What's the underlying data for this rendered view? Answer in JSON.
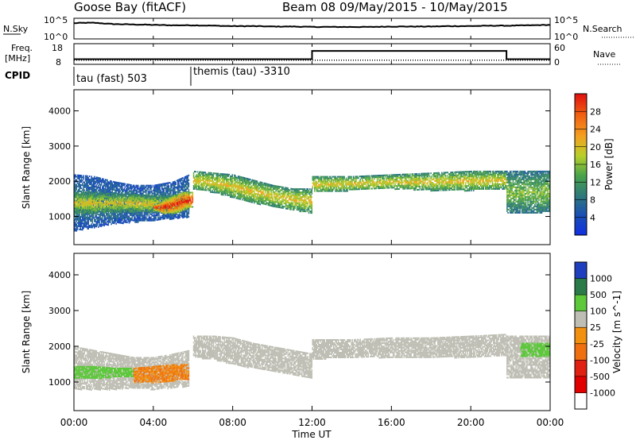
{
  "header": {
    "station": "Goose Bay (fitACF)",
    "beam_date": "Beam 08 09/May/2015 - 10/May/2015"
  },
  "chart_data": [
    {
      "type": "line",
      "panel": "noise",
      "left_label": "N.Sky",
      "right_label": "N.Search",
      "y_ticks": [
        "10^5",
        "10^0"
      ],
      "right_ticks": [
        "10^5",
        "10^0"
      ],
      "series": [
        {
          "name": "N.Sky",
          "x": [
            0,
            0.5,
            1,
            2,
            3,
            4,
            5,
            6,
            7,
            8,
            9,
            10,
            11,
            12,
            13,
            14,
            15,
            16,
            17,
            18,
            19,
            20,
            21,
            22,
            23,
            24
          ],
          "values": [
            3.8,
            3.9,
            3.9,
            3.6,
            3.5,
            3.4,
            3.3,
            3.3,
            3.2,
            3.1,
            3.1,
            3.0,
            3.0,
            2.9,
            2.9,
            2.9,
            2.9,
            3.0,
            3.0,
            3.0,
            3.1,
            3.1,
            3.2,
            3.2,
            3.3,
            3.4
          ]
        }
      ],
      "ylim": [
        0,
        5
      ],
      "xlim": [
        0,
        24
      ]
    },
    {
      "type": "line",
      "panel": "frequency",
      "left_label_1": "Freq.",
      "left_label_2": "[MHz]",
      "right_label": "Nave",
      "y_ticks": [
        "18",
        "8"
      ],
      "right_ticks": [
        "60",
        "0"
      ],
      "series": [
        {
          "name": "Freq.",
          "x": [
            0,
            12,
            12,
            21.8,
            21.8,
            24
          ],
          "values": [
            10.5,
            10.5,
            14.5,
            14.5,
            10.5,
            10.5
          ]
        },
        {
          "name": "Nave",
          "x": [
            0,
            24
          ],
          "values": [
            10,
            10
          ]
        }
      ],
      "ylim": [
        8,
        18
      ],
      "xlim": [
        0,
        24
      ]
    },
    {
      "type": "table",
      "panel": "cpid",
      "label": "CPID",
      "modes": [
        {
          "start": 0,
          "end": 6,
          "name": "tau (fast) 503"
        },
        {
          "start": 6,
          "end": 24,
          "name": "themis (tau) -3310"
        }
      ]
    },
    {
      "type": "heatmap",
      "panel": "power",
      "ylabel": "Slant Range [km]",
      "colorbar_label": "Power [dB]",
      "colorbar_ticks": [
        "28",
        "24",
        "20",
        "16",
        "12",
        "8",
        "4"
      ],
      "y_ticks": [
        1000,
        2000,
        3000,
        4000
      ],
      "ylim": [
        200,
        4600
      ],
      "xlim": [
        0,
        24
      ],
      "bands": [
        {
          "x": [
            0,
            1,
            2,
            3,
            4,
            5,
            5.8
          ],
          "y_low": [
            600,
            700,
            800,
            850,
            900,
            950,
            1000
          ],
          "y_high": [
            2200,
            2150,
            2000,
            1900,
            1900,
            2000,
            2200
          ],
          "power": 8
        },
        {
          "x": [
            0,
            1,
            2,
            3,
            4,
            5,
            5.8
          ],
          "y_low": [
            1100,
            1100,
            1150,
            1150,
            1150,
            1150,
            1200
          ],
          "y_high": [
            1700,
            1700,
            1650,
            1650,
            1600,
            1600,
            1700
          ],
          "power": 18
        },
        {
          "x": [
            4,
            4.5,
            5,
            5.5,
            6
          ],
          "y_low": [
            1200,
            1100,
            1100,
            1200,
            1300
          ],
          "y_high": [
            1350,
            1450,
            1600,
            1700,
            1700
          ],
          "power": 28
        },
        {
          "x": [
            6,
            7,
            8,
            9,
            10,
            11,
            12
          ],
          "y_low": [
            1800,
            1700,
            1550,
            1400,
            1300,
            1200,
            1100
          ],
          "y_high": [
            2300,
            2250,
            2200,
            2050,
            1900,
            1800,
            1800
          ],
          "power": 18
        },
        {
          "x": [
            12,
            14,
            16,
            18,
            20,
            21.8
          ],
          "y_low": [
            1700,
            1750,
            1800,
            1750,
            1750,
            1800
          ],
          "y_high": [
            2150,
            2150,
            2200,
            2250,
            2300,
            2300
          ],
          "power": 18
        },
        {
          "x": [
            21.8,
            22.5,
            23.2,
            24
          ],
          "y_low": [
            1100,
            1100,
            1100,
            1150
          ],
          "y_high": [
            2300,
            2300,
            2300,
            2300
          ],
          "power": 14
        }
      ]
    },
    {
      "type": "heatmap",
      "panel": "velocity",
      "ylabel": "Slant Range [km]",
      "colorbar_label": "Velocity [m s^-1]",
      "colorbar_ticks": [
        "1000",
        "500",
        "100",
        "25",
        "-25",
        "-100",
        "-500",
        "-1000"
      ],
      "y_ticks": [
        1000,
        2000,
        3000,
        4000
      ],
      "ylim": [
        200,
        4600
      ],
      "xlim": [
        0,
        24
      ],
      "xlabel": "Time UT",
      "x_ticks": [
        "00:00",
        "04:00",
        "08:00",
        "12:00",
        "16:00",
        "20:00",
        "00:00"
      ],
      "bands": [
        {
          "x": [
            0,
            1,
            2,
            3,
            4,
            5,
            5.8
          ],
          "y_low": [
            800,
            800,
            800,
            850,
            800,
            850,
            900
          ],
          "y_high": [
            2000,
            1900,
            1800,
            1700,
            1700,
            1800,
            1900
          ],
          "velocity": 0
        },
        {
          "x": [
            0,
            1,
            2,
            3
          ],
          "y_low": [
            1100,
            1100,
            1150,
            1150
          ],
          "y_high": [
            1450,
            1450,
            1400,
            1400
          ],
          "velocity": 200
        },
        {
          "x": [
            3,
            4,
            5,
            5.8
          ],
          "y_low": [
            1000,
            1000,
            1050,
            1100
          ],
          "y_high": [
            1400,
            1450,
            1500,
            1500
          ],
          "velocity": -300
        },
        {
          "x": [
            6,
            7,
            8,
            9,
            10,
            11,
            12
          ],
          "y_low": [
            1700,
            1650,
            1500,
            1400,
            1300,
            1200,
            1100
          ],
          "y_high": [
            2300,
            2300,
            2250,
            2100,
            2000,
            1900,
            1800
          ],
          "velocity": 0
        },
        {
          "x": [
            12,
            14,
            16,
            18,
            20,
            21.8
          ],
          "y_low": [
            1650,
            1700,
            1700,
            1700,
            1700,
            1750
          ],
          "y_high": [
            2200,
            2200,
            2250,
            2250,
            2300,
            2350
          ],
          "velocity": 0
        },
        {
          "x": [
            21.8,
            22.5,
            23.2,
            24
          ],
          "y_low": [
            1100,
            1100,
            1100,
            1150
          ],
          "y_high": [
            2300,
            2300,
            2300,
            2300
          ],
          "velocity": 0
        },
        {
          "x": [
            22.5,
            23.2,
            24
          ],
          "y_low": [
            1700,
            1700,
            1750
          ],
          "y_high": [
            2100,
            2100,
            2100
          ],
          "velocity": 150
        }
      ]
    }
  ]
}
